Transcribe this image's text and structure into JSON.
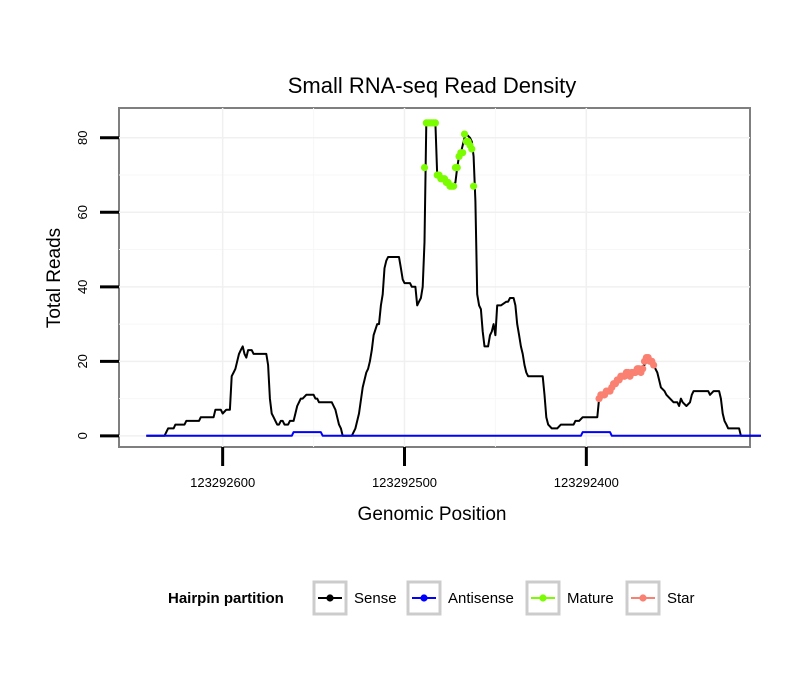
{
  "chart_data": {
    "type": "line",
    "title": "Small RNA-seq Read Density",
    "xlabel": "Genomic Position",
    "ylabel": "Total Reads",
    "xlim": [
      123292657,
      123292310
    ],
    "ylim": [
      -3,
      88
    ],
    "x_reversed": true,
    "grid": true,
    "x_ticks": [
      {
        "value": 123292600,
        "label": "123292600"
      },
      {
        "value": 123292500,
        "label": "123292500"
      },
      {
        "value": 123292400,
        "label": "123292400"
      }
    ],
    "y_ticks": [
      {
        "value": 0,
        "label": "0"
      },
      {
        "value": 20,
        "label": "20"
      },
      {
        "value": 40,
        "label": "40"
      },
      {
        "value": 60,
        "label": "60"
      },
      {
        "value": 80,
        "label": "80"
      }
    ],
    "legend": {
      "title": "Hairpin partition",
      "position": "bottom",
      "entries": [
        {
          "name": "Sense",
          "color": "#000000"
        },
        {
          "name": "Antisense",
          "color": "#0000ff"
        },
        {
          "name": "Mature",
          "color": "#7cfc00"
        },
        {
          "name": "Star",
          "color": "#fa8072"
        }
      ]
    },
    "series": [
      {
        "name": "Sense",
        "color": "#000000",
        "kind": "line",
        "points": [
          [
            123292642,
            0
          ],
          [
            123292632,
            0
          ],
          [
            123292630,
            2
          ],
          [
            123292627,
            2
          ],
          [
            123292626,
            3
          ],
          [
            123292621,
            3
          ],
          [
            123292620,
            4
          ],
          [
            123292613,
            4
          ],
          [
            123292612,
            5
          ],
          [
            123292605,
            5
          ],
          [
            123292604,
            7
          ],
          [
            123292601,
            7
          ],
          [
            123292600,
            6
          ],
          [
            123292598,
            7
          ],
          [
            123292596,
            7
          ],
          [
            123292595,
            16
          ],
          [
            123292594,
            17
          ],
          [
            123292593,
            18
          ],
          [
            123292592,
            20
          ],
          [
            123292591,
            22
          ],
          [
            123292590,
            23
          ],
          [
            123292589,
            24
          ],
          [
            123292588,
            22
          ],
          [
            123292587,
            21
          ],
          [
            123292586,
            23
          ],
          [
            123292584,
            23
          ],
          [
            123292583,
            22
          ],
          [
            123292576,
            22
          ],
          [
            123292575,
            19
          ],
          [
            123292574,
            10
          ],
          [
            123292573,
            6
          ],
          [
            123292572,
            5
          ],
          [
            123292571,
            4
          ],
          [
            123292570,
            3
          ],
          [
            123292569,
            3
          ],
          [
            123292568,
            4
          ],
          [
            123292567,
            4
          ],
          [
            123292566,
            3
          ],
          [
            123292564,
            3
          ],
          [
            123292563,
            4
          ],
          [
            123292561,
            4
          ],
          [
            123292560,
            6
          ],
          [
            123292559,
            8
          ],
          [
            123292558,
            9
          ],
          [
            123292557,
            10
          ],
          [
            123292556,
            10
          ],
          [
            123292554,
            11
          ],
          [
            123292550,
            11
          ],
          [
            123292549,
            10
          ],
          [
            123292548,
            10
          ],
          [
            123292547,
            9
          ],
          [
            123292540,
            9
          ],
          [
            123292539,
            8
          ],
          [
            123292538,
            7
          ],
          [
            123292537,
            5
          ],
          [
            123292536,
            3
          ],
          [
            123292535,
            2
          ],
          [
            123292534,
            0
          ],
          [
            123292529,
            0
          ],
          [
            123292527,
            2
          ],
          [
            123292525,
            6
          ],
          [
            123292523,
            13
          ],
          [
            123292521,
            17
          ],
          [
            123292520,
            18
          ],
          [
            123292519,
            20
          ],
          [
            123292518,
            23
          ],
          [
            123292517,
            27
          ],
          [
            123292515,
            30
          ],
          [
            123292514,
            30
          ],
          [
            123292513,
            35
          ],
          [
            123292512,
            38
          ],
          [
            123292511,
            45
          ],
          [
            123292510,
            47
          ],
          [
            123292509,
            48
          ],
          [
            123292503,
            48
          ],
          [
            123292502,
            45
          ],
          [
            123292501,
            42
          ],
          [
            123292500,
            41
          ],
          [
            123292497,
            41
          ],
          [
            123292496,
            40
          ],
          [
            123292494,
            40
          ],
          [
            123292493,
            35
          ],
          [
            123292492,
            36
          ],
          [
            123292491,
            37
          ],
          [
            123292490,
            40
          ],
          [
            123292489,
            52
          ],
          [
            123292488,
            84
          ],
          [
            123292483,
            84
          ],
          [
            123292482,
            70
          ],
          [
            123292480,
            70
          ],
          [
            123292478,
            69
          ],
          [
            123292476,
            68
          ],
          [
            123292474,
            67
          ],
          [
            123292472,
            68
          ],
          [
            123292471,
            72
          ],
          [
            123292470,
            75
          ],
          [
            123292469,
            76
          ],
          [
            123292468,
            78
          ],
          [
            123292467,
            80
          ],
          [
            123292466,
            81
          ],
          [
            123292464,
            80
          ],
          [
            123292463,
            79
          ],
          [
            123292462,
            75
          ],
          [
            123292461,
            63
          ],
          [
            123292460,
            38
          ],
          [
            123292459,
            35
          ],
          [
            123292458,
            34
          ],
          [
            123292457,
            28
          ],
          [
            123292456,
            24
          ],
          [
            123292454,
            24
          ],
          [
            123292453,
            27
          ],
          [
            123292452,
            28
          ],
          [
            123292451,
            30
          ],
          [
            123292450,
            27
          ],
          [
            123292449,
            35
          ],
          [
            123292447,
            35
          ],
          [
            123292444,
            36
          ],
          [
            123292443,
            36
          ],
          [
            123292442,
            37
          ],
          [
            123292440,
            37
          ],
          [
            123292439,
            35
          ],
          [
            123292438,
            30
          ],
          [
            123292437,
            27
          ],
          [
            123292436,
            24
          ],
          [
            123292435,
            22
          ],
          [
            123292434,
            19
          ],
          [
            123292433,
            17
          ],
          [
            123292432,
            16
          ],
          [
            123292424,
            16
          ],
          [
            123292423,
            11
          ],
          [
            123292422,
            5
          ],
          [
            123292421,
            3
          ],
          [
            123292419,
            2
          ],
          [
            123292416,
            2
          ],
          [
            123292414,
            3
          ],
          [
            123292407,
            3
          ],
          [
            123292406,
            4
          ],
          [
            123292404,
            4
          ],
          [
            123292402,
            5
          ],
          [
            123292394,
            5
          ],
          [
            123292393,
            10
          ],
          [
            123292392,
            10
          ],
          [
            123292390,
            11
          ],
          [
            123292389,
            11
          ],
          [
            123292388,
            12
          ],
          [
            123292385,
            14
          ],
          [
            123292383,
            15
          ],
          [
            123292380,
            16
          ],
          [
            123292378,
            16
          ],
          [
            123292377,
            17
          ],
          [
            123292373,
            17
          ],
          [
            123292371,
            18
          ],
          [
            123292368,
            19
          ],
          [
            123292367,
            21
          ],
          [
            123292363,
            20
          ],
          [
            123292362,
            18
          ],
          [
            123292361,
            17
          ],
          [
            123292360,
            15
          ],
          [
            123292359,
            13
          ],
          [
            123292357,
            12
          ],
          [
            123292356,
            11
          ],
          [
            123292354,
            10
          ],
          [
            123292352,
            9
          ],
          [
            123292350,
            9
          ],
          [
            123292349,
            8
          ],
          [
            123292348,
            10
          ],
          [
            123292347,
            9
          ],
          [
            123292345,
            8
          ],
          [
            123292343,
            9
          ],
          [
            123292342,
            11
          ],
          [
            123292341,
            12
          ],
          [
            123292333,
            12
          ],
          [
            123292332,
            11
          ],
          [
            123292330,
            12
          ],
          [
            123292327,
            12
          ],
          [
            123292326,
            10
          ],
          [
            123292325,
            6
          ],
          [
            123292324,
            4
          ],
          [
            123292323,
            3
          ],
          [
            123292322,
            2
          ],
          [
            123292316,
            2
          ],
          [
            123292315,
            0
          ],
          [
            123292304,
            0
          ]
        ]
      },
      {
        "name": "Antisense",
        "color": "#0000ff",
        "kind": "line",
        "points": [
          [
            123292642,
            0
          ],
          [
            123292562,
            0
          ],
          [
            123292561,
            1
          ],
          [
            123292546,
            1
          ],
          [
            123292545,
            0
          ],
          [
            123292403,
            0
          ],
          [
            123292402,
            1
          ],
          [
            123292387,
            1
          ],
          [
            123292386,
            0
          ],
          [
            123292304,
            0
          ]
        ]
      },
      {
        "name": "Mature",
        "color": "#7cfc00",
        "kind": "points",
        "points": [
          [
            123292489,
            72
          ],
          [
            123292488,
            84
          ],
          [
            123292487,
            84
          ],
          [
            123292486,
            84
          ],
          [
            123292485,
            84
          ],
          [
            123292484,
            84
          ],
          [
            123292483,
            84
          ],
          [
            123292482,
            70
          ],
          [
            123292481,
            70
          ],
          [
            123292480,
            69
          ],
          [
            123292479,
            69
          ],
          [
            123292478,
            69
          ],
          [
            123292477,
            68
          ],
          [
            123292476,
            68
          ],
          [
            123292475,
            67
          ],
          [
            123292474,
            67
          ],
          [
            123292473,
            67
          ],
          [
            123292472,
            72
          ],
          [
            123292471,
            72
          ],
          [
            123292470,
            75
          ],
          [
            123292469,
            76
          ],
          [
            123292468,
            76
          ],
          [
            123292467,
            81
          ],
          [
            123292466,
            79
          ],
          [
            123292465,
            79
          ],
          [
            123292464,
            78
          ],
          [
            123292463,
            77
          ],
          [
            123292462,
            67
          ]
        ]
      },
      {
        "name": "Star",
        "color": "#fa8072",
        "kind": "points",
        "points": [
          [
            123292393,
            10
          ],
          [
            123292392,
            11
          ],
          [
            123292391,
            11
          ],
          [
            123292390,
            11
          ],
          [
            123292389,
            12
          ],
          [
            123292388,
            12
          ],
          [
            123292387,
            12
          ],
          [
            123292386,
            13
          ],
          [
            123292385,
            14
          ],
          [
            123292384,
            14
          ],
          [
            123292383,
            15
          ],
          [
            123292382,
            15
          ],
          [
            123292381,
            16
          ],
          [
            123292380,
            16
          ],
          [
            123292379,
            16
          ],
          [
            123292378,
            17
          ],
          [
            123292377,
            17
          ],
          [
            123292376,
            16
          ],
          [
            123292375,
            17
          ],
          [
            123292374,
            17
          ],
          [
            123292373,
            17
          ],
          [
            123292372,
            18
          ],
          [
            123292371,
            18
          ],
          [
            123292370,
            17
          ],
          [
            123292369,
            18
          ],
          [
            123292368,
            20
          ],
          [
            123292367,
            21
          ],
          [
            123292366,
            21
          ],
          [
            123292365,
            20
          ],
          [
            123292364,
            20
          ],
          [
            123292363,
            19
          ]
        ]
      }
    ]
  }
}
